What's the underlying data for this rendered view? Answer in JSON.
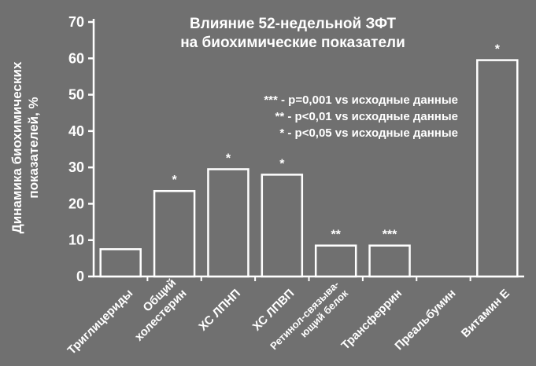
{
  "chart_data": {
    "type": "bar",
    "title": [
      "Влияние 52-недельной ЗФТ",
      "на биохимические показатели"
    ],
    "ylabel": [
      "Динамика биохимических",
      "показателей, %"
    ],
    "xlabel": "",
    "ylim": [
      0,
      70
    ],
    "yticks": [
      "0",
      "10",
      "20",
      "30",
      "40",
      "50",
      "60",
      "70"
    ],
    "categories": [
      [
        "Триглицериды"
      ],
      [
        "Общий",
        "холестерин"
      ],
      [
        "ХС ЛПНП"
      ],
      [
        "ХС ЛПВП"
      ],
      [
        "Ретинол-связыва-",
        "ющий белок"
      ],
      [
        "Трансферрин"
      ],
      [
        "Преальбумин"
      ],
      [
        "Витамин Е"
      ]
    ],
    "values": [
      7.5,
      23.5,
      29.5,
      28,
      8.5,
      8.5,
      0,
      59.5
    ],
    "significance": [
      "",
      "*",
      "*",
      "*",
      "**",
      "***",
      "",
      "*"
    ],
    "notes": [
      "*** - p=0,001 vs исходные данные",
      "** - p<0,01 vs исходные данные",
      "* - p<0,05 vs исходные данные"
    ],
    "grid": false,
    "colors": {
      "background": "#707070",
      "bar_fill": "#707070",
      "foreground": "#ffffff"
    }
  }
}
